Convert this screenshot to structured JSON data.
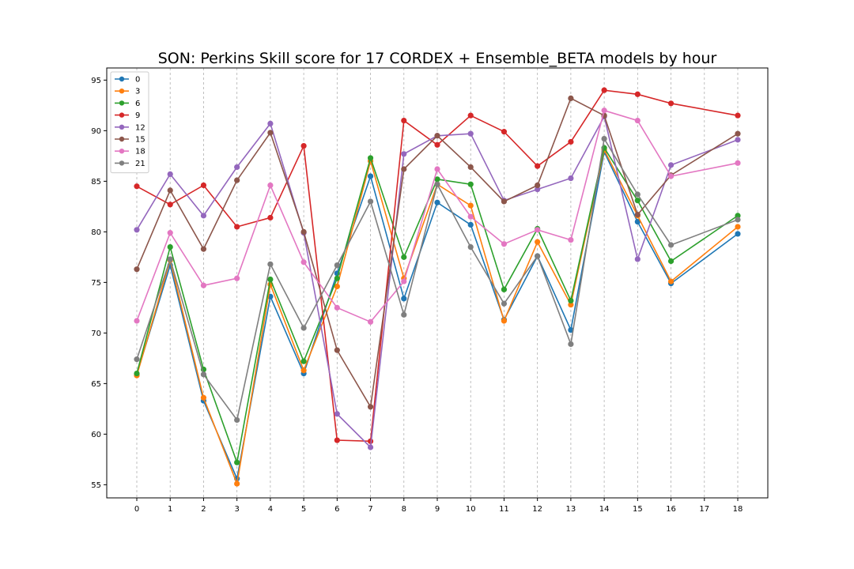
{
  "chart_data": {
    "type": "line",
    "title": "SON: Perkins Skill score for 17 CORDEX + Ensemble_BETA models by hour",
    "xlabel": "",
    "ylabel": "",
    "x": [
      0,
      1,
      2,
      3,
      4,
      5,
      6,
      7,
      8,
      9,
      10,
      11,
      12,
      13,
      14,
      15,
      16,
      17,
      18
    ],
    "x_tick_labels": [
      "0",
      "1",
      "2",
      "3",
      "4",
      "5",
      "6",
      "7",
      "8",
      "9",
      "10",
      "11",
      "12",
      "13",
      "14",
      "15",
      "16",
      "17",
      "18"
    ],
    "xlim": [
      -0.9,
      18.9
    ],
    "ylim": [
      53.7,
      96.2
    ],
    "y_ticks": [
      55,
      60,
      65,
      70,
      75,
      80,
      85,
      90,
      95
    ],
    "x_grid": true,
    "y_grid": false,
    "legend_position": "top-left",
    "series": [
      {
        "name": "0",
        "color": "#1f77b4",
        "x": [
          0,
          1,
          2,
          3,
          4,
          5,
          6,
          7,
          8,
          9,
          10,
          11,
          12,
          13,
          14,
          15,
          16,
          18
        ],
        "values": [
          65.9,
          76.7,
          63.3,
          55.6,
          73.6,
          66.0,
          75.9,
          85.5,
          73.4,
          82.9,
          80.7,
          71.3,
          77.6,
          70.3,
          87.9,
          81.0,
          74.9,
          79.8
        ]
      },
      {
        "name": "3",
        "color": "#ff7f0e",
        "x": [
          0,
          1,
          2,
          3,
          4,
          5,
          6,
          7,
          8,
          9,
          10,
          11,
          12,
          13,
          14,
          15,
          16,
          18
        ],
        "values": [
          65.8,
          77.2,
          63.6,
          55.1,
          74.8,
          66.3,
          74.6,
          87.0,
          75.4,
          84.7,
          82.6,
          71.2,
          79.0,
          72.8,
          88.1,
          81.6,
          75.1,
          80.5
        ]
      },
      {
        "name": "6",
        "color": "#2ca02c",
        "x": [
          0,
          1,
          2,
          3,
          4,
          5,
          6,
          7,
          8,
          9,
          10,
          11,
          12,
          13,
          14,
          15,
          16,
          18
        ],
        "values": [
          66.0,
          78.5,
          66.4,
          57.2,
          75.3,
          67.2,
          75.4,
          87.3,
          77.5,
          85.2,
          84.7,
          74.3,
          80.3,
          73.2,
          88.3,
          83.1,
          77.1,
          81.6
        ]
      },
      {
        "name": "9",
        "color": "#d62728",
        "x": [
          0,
          1,
          2,
          3,
          4,
          5,
          6,
          7,
          8,
          9,
          10,
          11,
          12,
          13,
          14,
          15,
          16,
          18
        ],
        "values": [
          84.5,
          82.7,
          84.6,
          80.5,
          81.4,
          88.5,
          59.4,
          59.3,
          91.0,
          88.6,
          91.5,
          89.9,
          86.5,
          88.9,
          94.0,
          93.6,
          92.7,
          91.5
        ]
      },
      {
        "name": "12",
        "color": "#9467bd",
        "x": [
          0,
          1,
          2,
          3,
          4,
          5,
          6,
          7,
          8,
          9,
          10,
          11,
          12,
          13,
          14,
          15,
          16,
          18
        ],
        "values": [
          80.2,
          85.7,
          81.6,
          86.4,
          90.7,
          79.9,
          62.0,
          58.7,
          87.7,
          89.5,
          89.7,
          83.1,
          84.2,
          85.3,
          91.4,
          77.3,
          86.6,
          89.1
        ]
      },
      {
        "name": "15",
        "color": "#8c564b",
        "x": [
          0,
          1,
          2,
          3,
          4,
          5,
          6,
          7,
          8,
          9,
          10,
          11,
          12,
          13,
          14,
          15,
          16,
          18
        ],
        "values": [
          76.3,
          84.1,
          78.3,
          85.1,
          89.8,
          80.0,
          68.3,
          62.7,
          86.2,
          89.5,
          86.4,
          83.0,
          84.6,
          93.2,
          91.5,
          81.7,
          85.6,
          89.7
        ]
      },
      {
        "name": "18",
        "color": "#e377c2",
        "x": [
          0,
          1,
          2,
          3,
          4,
          5,
          6,
          7,
          8,
          9,
          10,
          11,
          12,
          13,
          14,
          15,
          16,
          18
        ],
        "values": [
          71.2,
          79.9,
          74.7,
          75.4,
          84.6,
          77.0,
          72.5,
          71.1,
          75.1,
          86.2,
          81.5,
          78.8,
          80.2,
          79.2,
          92.0,
          91.0,
          85.5,
          86.8
        ]
      },
      {
        "name": "21",
        "color": "#7f7f7f",
        "x": [
          0,
          1,
          2,
          3,
          4,
          5,
          6,
          7,
          8,
          9,
          10,
          11,
          12,
          13,
          14,
          15,
          16,
          18
        ],
        "values": [
          67.4,
          77.3,
          65.9,
          61.4,
          76.8,
          70.5,
          76.7,
          83.0,
          71.8,
          84.7,
          78.5,
          72.9,
          77.6,
          68.9,
          89.2,
          83.7,
          78.7,
          81.2
        ]
      }
    ]
  }
}
